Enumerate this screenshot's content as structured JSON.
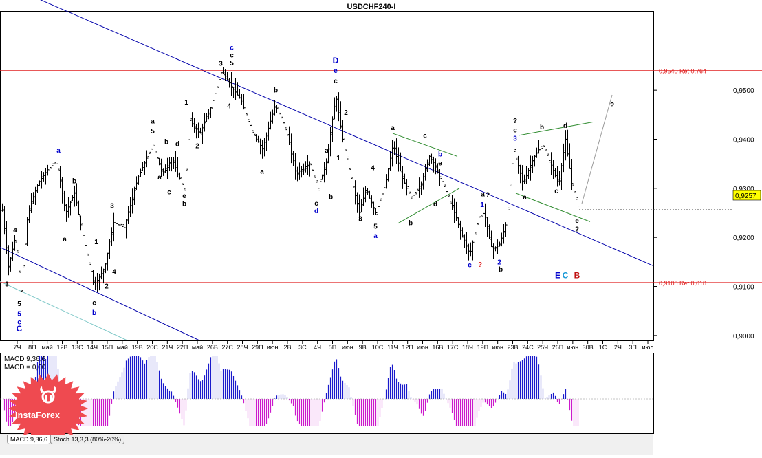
{
  "chart_data": {
    "type": "candlestick",
    "title": "USDCHF240-I",
    "price_axis": {
      "range": [
        0.899,
        0.966
      ],
      "ticks": [
        "0,9000",
        "0,9100",
        "0,9200",
        "0,9300",
        "0,9400",
        "0,9500"
      ],
      "current_price": "0,9257",
      "current_value": 0.9257
    },
    "date_axis": {
      "ticks": [
        "7Ч",
        "8П",
        "май",
        "12В",
        "13С",
        "14Ч",
        "15П",
        "май",
        "19В",
        "20С",
        "21Ч",
        "22П",
        "май",
        "26В",
        "27С",
        "28Ч",
        "29П",
        "июн",
        "2В",
        "3С",
        "4Ч",
        "5П",
        "июн",
        "9В",
        "10С",
        "11Ч",
        "12П",
        "июн",
        "16В",
        "17С",
        "18Ч",
        "19П",
        "июн",
        "23В",
        "24С",
        "25Ч",
        "26П",
        "июн",
        "30В",
        "1С",
        "2Ч",
        "3П",
        "июл"
      ]
    },
    "levels": [
      {
        "value": 0.954,
        "label": "0,9540 Ret 0,764",
        "color": "#e02020"
      },
      {
        "value": 0.9108,
        "label": "0,9108 Ret 0,618",
        "color": "#e02020"
      }
    ],
    "channels": [
      {
        "name": "main-trendline",
        "from": [
          0,
          0.972
        ],
        "to": [
          950,
          0.9142
        ],
        "color": "#0000aa"
      },
      {
        "name": "lower-trendline",
        "from": [
          0,
          0.918
        ],
        "to": [
          290,
          0.899
        ],
        "color": "#0000aa"
      },
      {
        "name": "cyan-trendline",
        "from": [
          0,
          0.911
        ],
        "to": [
          185,
          0.899
        ],
        "color": "#7fc8c8"
      }
    ],
    "wave_labels": [
      {
        "text": "3",
        "color": "#000",
        "x": 10,
        "y": 0.91
      },
      {
        "text": "4",
        "color": "#000",
        "x": 22,
        "y": 0.921
      },
      {
        "text": "5",
        "color": "#000",
        "x": 28,
        "y": 0.906
      },
      {
        "text": "5",
        "color": "#0000cc",
        "x": 28,
        "y": 0.904
      },
      {
        "text": "c",
        "color": "#0000cc",
        "x": 28,
        "y": 0.9023
      },
      {
        "text": "C",
        "color": "#0000cc",
        "x": 28,
        "y": 0.9008
      },
      {
        "text": "a",
        "color": "#0000cc",
        "x": 85,
        "y": 0.9373
      },
      {
        "text": "b",
        "color": "#000",
        "x": 108,
        "y": 0.931
      },
      {
        "text": "a",
        "color": "#000",
        "x": 94,
        "y": 0.9192
      },
      {
        "text": "1",
        "color": "#000",
        "x": 140,
        "y": 0.9186
      },
      {
        "text": "3",
        "color": "#000",
        "x": 163,
        "y": 0.926
      },
      {
        "text": "4",
        "color": "#000",
        "x": 166,
        "y": 0.9125
      },
      {
        "text": "2",
        "color": "#000",
        "x": 155,
        "y": 0.9096
      },
      {
        "text": "c",
        "color": "#000",
        "x": 137,
        "y": 0.9062
      },
      {
        "text": "b",
        "color": "#0000cc",
        "x": 137,
        "y": 0.9042
      },
      {
        "text": "a",
        "color": "#000",
        "x": 222,
        "y": 0.9432
      },
      {
        "text": "5",
        "color": "#000",
        "x": 222,
        "y": 0.9412
      },
      {
        "text": "b",
        "color": "#000",
        "x": 242,
        "y": 0.939
      },
      {
        "text": "d",
        "color": "#000",
        "x": 258,
        "y": 0.9386
      },
      {
        "text": "a",
        "color": "#000",
        "x": 232,
        "y": 0.9318
      },
      {
        "text": "c",
        "color": "#000",
        "x": 246,
        "y": 0.9288
      },
      {
        "text": "e",
        "color": "#000",
        "x": 268,
        "y": 0.928
      },
      {
        "text": "b",
        "color": "#000",
        "x": 268,
        "y": 0.9264
      },
      {
        "text": "1",
        "color": "#000",
        "x": 271,
        "y": 0.9471
      },
      {
        "text": "2",
        "color": "#000",
        "x": 287,
        "y": 0.9382
      },
      {
        "text": "3",
        "color": "#000",
        "x": 321,
        "y": 0.955
      },
      {
        "text": "5",
        "color": "#000",
        "x": 337,
        "y": 0.9551
      },
      {
        "text": "c",
        "color": "#000",
        "x": 337,
        "y": 0.9567
      },
      {
        "text": "c",
        "color": "#0000cc",
        "x": 337,
        "y": 0.9582
      },
      {
        "text": "4",
        "color": "#000",
        "x": 333,
        "y": 0.9463
      },
      {
        "text": "b",
        "color": "#000",
        "x": 401,
        "y": 0.9495
      },
      {
        "text": "a",
        "color": "#000",
        "x": 381,
        "y": 0.933
      },
      {
        "text": "D",
        "color": "#0000cc",
        "x": 488,
        "y": 0.9555
      },
      {
        "text": "e",
        "color": "#0000cc",
        "x": 488,
        "y": 0.9535
      },
      {
        "text": "c",
        "color": "#000",
        "x": 488,
        "y": 0.9514
      },
      {
        "text": "2",
        "color": "#000",
        "x": 503,
        "y": 0.945
      },
      {
        "text": "1",
        "color": "#000",
        "x": 492,
        "y": 0.9357
      },
      {
        "text": "a",
        "color": "#000",
        "x": 475,
        "y": 0.9373
      },
      {
        "text": "b",
        "color": "#000",
        "x": 481,
        "y": 0.9278
      },
      {
        "text": "c",
        "color": "#000",
        "x": 460,
        "y": 0.9265
      },
      {
        "text": "d",
        "color": "#0000cc",
        "x": 460,
        "y": 0.9249
      },
      {
        "text": "3",
        "color": "#000",
        "x": 524,
        "y": 0.9233
      },
      {
        "text": "4",
        "color": "#000",
        "x": 542,
        "y": 0.9337
      },
      {
        "text": "5",
        "color": "#000",
        "x": 546,
        "y": 0.9218
      },
      {
        "text": "a",
        "color": "#0000cc",
        "x": 546,
        "y": 0.9199
      },
      {
        "text": "a",
        "color": "#000",
        "x": 571,
        "y": 0.9419
      },
      {
        "text": "c",
        "color": "#000",
        "x": 618,
        "y": 0.9403
      },
      {
        "text": "b",
        "color": "#0000cc",
        "x": 640,
        "y": 0.9365
      },
      {
        "text": "e",
        "color": "#000",
        "x": 640,
        "y": 0.9347
      },
      {
        "text": "b",
        "color": "#000",
        "x": 597,
        "y": 0.9225
      },
      {
        "text": "d",
        "color": "#000",
        "x": 633,
        "y": 0.9263
      },
      {
        "text": "c",
        "color": "#0000cc",
        "x": 683,
        "y": 0.9139
      },
      {
        "text": "?",
        "color": "#e02020",
        "x": 698,
        "y": 0.914
      },
      {
        "text": "a",
        "color": "#000",
        "x": 702,
        "y": 0.9284
      },
      {
        "text": "?",
        "color": "#000",
        "x": 709,
        "y": 0.9282
      },
      {
        "text": "1",
        "color": "#0000cc",
        "x": 701,
        "y": 0.9262
      },
      {
        "text": "2",
        "color": "#0000cc",
        "x": 726,
        "y": 0.9145
      },
      {
        "text": "b",
        "color": "#000",
        "x": 728,
        "y": 0.913
      },
      {
        "text": "?",
        "color": "#000",
        "x": 749,
        "y": 0.9433
      },
      {
        "text": "c",
        "color": "#000",
        "x": 749,
        "y": 0.9414
      },
      {
        "text": "3",
        "color": "#0000cc",
        "x": 749,
        "y": 0.9397
      },
      {
        "text": "b",
        "color": "#000",
        "x": 788,
        "y": 0.942
      },
      {
        "text": "d",
        "color": "#000",
        "x": 822,
        "y": 0.9423
      },
      {
        "text": "a",
        "color": "#000",
        "x": 763,
        "y": 0.9277
      },
      {
        "text": "c",
        "color": "#000",
        "x": 809,
        "y": 0.929
      },
      {
        "text": "e",
        "color": "#000",
        "x": 839,
        "y": 0.923
      },
      {
        "text": "?",
        "color": "#000",
        "x": 839,
        "y": 0.9212
      },
      {
        "text": "?",
        "color": "#000",
        "x": 890,
        "y": 0.9465
      },
      {
        "text": "E",
        "color": "#0000cc",
        "x": 811,
        "y": 0.9117
      },
      {
        "text": "C",
        "color": "#1a9ad6",
        "x": 822,
        "y": 0.9117
      },
      {
        "text": "B",
        "color": "#c01010",
        "x": 839,
        "y": 0.9117
      }
    ],
    "macd": {
      "label_line1": "MACD 9,36,6",
      "label_line2": "MACD = 0,00",
      "range": [
        -1,
        1
      ]
    },
    "tabs": [
      "MACD 9,36,6",
      "Stoch 13,3,3 (80%-20%)"
    ],
    "logo_text": "InstaForex"
  }
}
